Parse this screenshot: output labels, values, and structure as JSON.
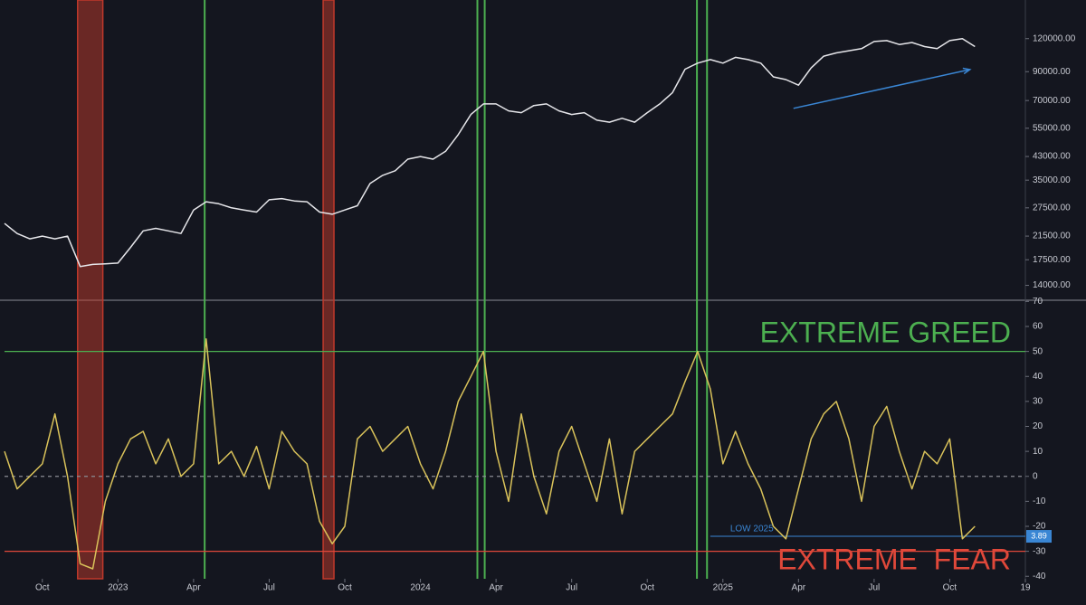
{
  "chart_data": [
    {
      "type": "line",
      "log_scale": true,
      "color": "#e6e6ea",
      "x": [
        -4.5,
        -4,
        -3.5,
        -3,
        -2.5,
        -2,
        -1.5,
        -1,
        -0.5,
        0,
        0.5,
        1,
        1.5,
        2,
        2.5,
        3,
        3.5,
        4,
        4.5,
        5,
        5.5,
        6,
        6.5,
        7,
        7.5,
        8,
        8.5,
        9,
        9.5,
        10,
        10.5,
        11,
        11.5,
        12,
        12.5,
        13,
        13.5,
        14,
        14.5,
        15,
        15.5,
        16,
        16.5,
        17,
        17.5,
        18,
        18.5,
        19,
        19.5,
        20,
        20.5,
        21,
        21.5,
        22,
        22.5,
        23,
        23.5,
        24,
        24.5,
        25,
        25.5,
        26,
        26.5,
        27,
        27.5,
        28,
        28.5,
        29,
        29.5,
        30,
        30.5,
        31,
        31.5,
        32,
        32.5,
        33,
        33.5,
        34
      ],
      "values": [
        24000,
        22000,
        21000,
        21500,
        21000,
        21500,
        16500,
        16800,
        16900,
        17000,
        19500,
        22500,
        23000,
        22500,
        22000,
        27000,
        29000,
        28500,
        27500,
        27000,
        26500,
        29500,
        29800,
        29200,
        29000,
        26500,
        26000,
        27000,
        28000,
        34000,
        36500,
        38000,
        42000,
        43000,
        42000,
        45000,
        52000,
        62000,
        68000,
        68000,
        64000,
        63000,
        67000,
        68000,
        64000,
        62000,
        63000,
        59000,
        58000,
        60000,
        58000,
        63000,
        68000,
        75000,
        92000,
        97000,
        100000,
        97000,
        102000,
        100000,
        97000,
        86000,
        84000,
        80000,
        93000,
        103000,
        106000,
        108000,
        110000,
        117000,
        118000,
        114000,
        116000,
        112000,
        110000,
        118000,
        120000,
        112000
      ],
      "xlim": [
        -4.5,
        36
      ],
      "ylim": [
        12300,
        168000
      ],
      "yticks": [
        {
          "value": 120000,
          "label": "120000.00"
        },
        {
          "value": 90000,
          "label": "90000.00"
        },
        {
          "value": 70000,
          "label": "70000.00"
        },
        {
          "value": 55000,
          "label": "55000.00"
        },
        {
          "value": 43000,
          "label": "43000.00"
        },
        {
          "value": 35000,
          "label": "35000.00"
        },
        {
          "value": 27500,
          "label": "27500.00"
        },
        {
          "value": 21500,
          "label": "21500.00"
        },
        {
          "value": 17500,
          "label": "17500.00"
        },
        {
          "value": 14000,
          "label": "14000.00"
        }
      ],
      "red_zones": [
        [
          -1.6,
          -0.6
        ],
        [
          8.14,
          8.57
        ]
      ],
      "red_zone_color": "#c0392b",
      "green_lines": [
        3.44,
        14.26,
        14.55,
        22.97,
        23.37
      ],
      "green_line_color": "#4caf50",
      "trend_arrow": {
        "x": [
          26.8,
          33.8
        ],
        "y": [
          65400,
          91700
        ],
        "color": "#3a86d4"
      }
    },
    {
      "type": "line",
      "color": "#d9c25a",
      "x": [
        -4.5,
        -4,
        -3.5,
        -3,
        -2.5,
        -2,
        -1.5,
        -1,
        -0.5,
        0,
        0.5,
        1,
        1.5,
        2,
        2.5,
        3,
        3.5,
        4,
        4.5,
        5,
        5.5,
        6,
        6.5,
        7,
        7.5,
        8,
        8.5,
        9,
        9.5,
        10,
        10.5,
        11,
        11.5,
        12,
        12.5,
        13,
        13.5,
        14,
        14.5,
        15,
        15.5,
        16,
        16.5,
        17,
        17.5,
        18,
        18.5,
        19,
        19.5,
        20,
        20.5,
        21,
        21.5,
        22,
        22.5,
        23,
        23.5,
        24,
        24.5,
        25,
        25.5,
        26,
        26.5,
        27,
        27.5,
        28,
        28.5,
        29,
        29.5,
        30,
        30.5,
        31,
        31.5,
        32,
        32.5,
        33,
        33.5,
        34
      ],
      "values": [
        10,
        -5,
        0,
        5,
        25,
        0,
        -35,
        -37,
        -10,
        5,
        15,
        18,
        5,
        15,
        0,
        5,
        55,
        5,
        10,
        0,
        12,
        -5,
        18,
        10,
        5,
        -18,
        -27,
        -20,
        15,
        20,
        10,
        15,
        20,
        5,
        -5,
        10,
        30,
        40,
        50,
        10,
        -10,
        25,
        0,
        -15,
        10,
        20,
        5,
        -10,
        15,
        -15,
        10,
        15,
        20,
        25,
        38,
        50,
        35,
        5,
        18,
        5,
        -5,
        -20,
        -25,
        -5,
        15,
        25,
        30,
        15,
        -10,
        20,
        28,
        10,
        -5,
        10,
        5,
        15,
        -25,
        -20
      ],
      "xlim": [
        -4.5,
        36
      ],
      "ylim": [
        -41,
        70.5
      ],
      "yticks": [
        70,
        60,
        50,
        40,
        30,
        20,
        10,
        0,
        -10,
        -20,
        -30,
        -40
      ],
      "xticks": [
        {
          "value": -3,
          "label": "Oct"
        },
        {
          "value": 0,
          "label": "2023"
        },
        {
          "value": 3,
          "label": "Apr"
        },
        {
          "value": 6,
          "label": "Jul"
        },
        {
          "value": 9,
          "label": "Oct"
        },
        {
          "value": 12,
          "label": "2024"
        },
        {
          "value": 15,
          "label": "Apr"
        },
        {
          "value": 18,
          "label": "Jul"
        },
        {
          "value": 21,
          "label": "Oct"
        },
        {
          "value": 24,
          "label": "2025"
        },
        {
          "value": 27,
          "label": "Apr"
        },
        {
          "value": 30,
          "label": "Jul"
        },
        {
          "value": 33,
          "label": "Oct"
        },
        {
          "value": 36,
          "label": "19"
        }
      ],
      "greed_level": 50,
      "greed_color": "#4caf50",
      "greed_text": "EXTREME GREED",
      "fear_level": -30,
      "fear_color": "#e0483a",
      "fear_text": "EXTREME  FEAR",
      "zero_level": 0,
      "low_line": {
        "label": "LOW 2025",
        "value": -24,
        "x_start": 23.5,
        "badge": "3.89",
        "color": "#3a86d4"
      }
    }
  ]
}
